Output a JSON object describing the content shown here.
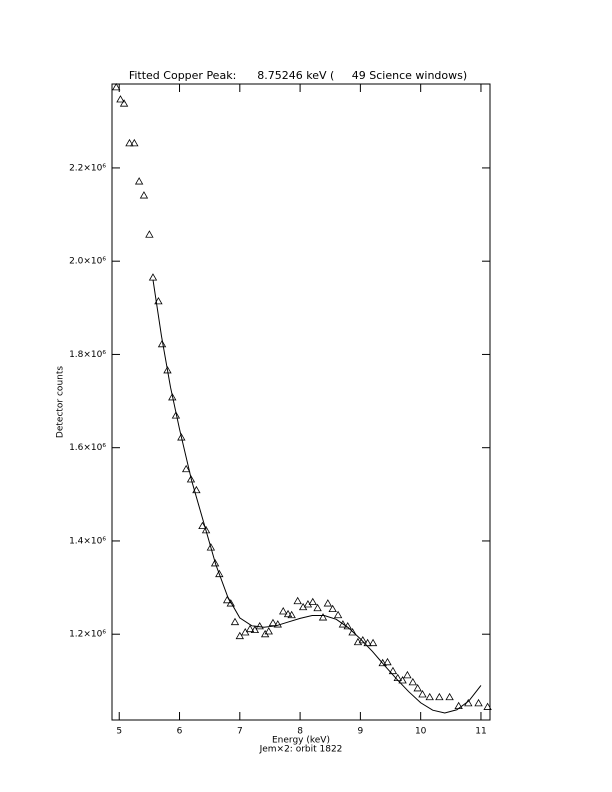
{
  "chart_data": {
    "type": "scatter",
    "title": "Fitted Copper Peak:      8.75246 keV (     49 Science windows)",
    "x_label": "Energy (keV)",
    "subtitle": "Jem×2: orbit 1822",
    "y_label": "Detector counts",
    "xlim": [
      4.88,
      11.15
    ],
    "ylim": [
      1016000,
      2380000
    ],
    "xticks": [
      5,
      6,
      7,
      8,
      9,
      10,
      11
    ],
    "yticks": [
      {
        "value": 1200000,
        "label": "1.2×10⁶"
      },
      {
        "value": 1400000,
        "label": "1.4×10⁶"
      },
      {
        "value": 1600000,
        "label": "1.6×10⁶"
      },
      {
        "value": 1800000,
        "label": "1.8×10⁶"
      },
      {
        "value": 2000000,
        "label": "2.0×10⁶"
      },
      {
        "value": 2200000,
        "label": "2.2×10⁶"
      }
    ],
    "series": [
      {
        "color": "#000000",
        "marker": "triangle",
        "x": [
          4.95,
          5.02,
          5.08,
          5.17,
          5.25,
          5.33,
          5.41,
          5.5,
          5.56,
          5.65,
          5.71,
          5.8,
          5.88,
          5.94,
          6.03,
          6.11,
          6.19,
          6.28,
          6.38,
          6.44,
          6.52,
          6.59,
          6.66,
          6.79,
          6.85,
          6.92,
          7.0,
          7.09,
          7.17,
          7.25,
          7.33,
          7.42,
          7.48,
          7.55,
          7.63,
          7.72,
          7.8,
          7.86,
          7.96,
          8.05,
          8.13,
          8.21,
          8.29,
          8.38,
          8.46,
          8.54,
          8.63,
          8.71,
          8.79,
          8.87,
          8.96,
          9.04,
          9.12,
          9.21,
          9.37,
          9.45,
          9.54,
          9.62,
          9.7,
          9.78,
          9.87,
          9.95,
          10.03,
          10.15,
          10.31,
          10.48,
          10.63,
          10.79,
          10.96,
          11.11
        ],
        "values": [
          2373000,
          2347000,
          2338000,
          2253000,
          2253000,
          2171000,
          2141000,
          2057000,
          1965000,
          1914000,
          1822000,
          1766000,
          1708000,
          1669000,
          1622000,
          1554000,
          1532000,
          1509000,
          1432000,
          1423000,
          1386000,
          1352000,
          1329000,
          1273000,
          1266000,
          1226000,
          1196000,
          1204000,
          1211000,
          1209000,
          1217000,
          1200000,
          1206000,
          1224000,
          1221000,
          1249000,
          1243000,
          1241000,
          1271000,
          1258000,
          1264000,
          1269000,
          1256000,
          1236000,
          1266000,
          1254000,
          1241000,
          1221000,
          1217000,
          1204000,
          1183000,
          1187000,
          1181000,
          1181000,
          1138000,
          1140000,
          1121000,
          1106000,
          1101000,
          1112000,
          1097000,
          1084000,
          1071000,
          1065000,
          1065000,
          1065000,
          1046000,
          1052000,
          1052000,
          1044000
        ]
      },
      {
        "color": "#000000",
        "style": "line",
        "x": [
          5.56,
          5.7,
          5.85,
          6.0,
          6.2,
          6.4,
          6.6,
          6.8,
          7.0,
          7.2,
          7.4,
          7.6,
          7.8,
          8.0,
          8.2,
          8.4,
          8.6,
          8.8,
          9.0,
          9.2,
          9.4,
          9.6,
          9.8,
          10.0,
          10.2,
          10.4,
          10.6,
          10.8,
          11.0
        ],
        "values": [
          1960000,
          1840000,
          1730000,
          1640000,
          1530000,
          1440000,
          1350000,
          1280000,
          1235000,
          1218000,
          1215000,
          1218000,
          1226000,
          1234000,
          1240000,
          1240000,
          1232000,
          1214000,
          1190000,
          1163000,
          1133000,
          1104000,
          1077000,
          1053000,
          1037000,
          1031000,
          1038000,
          1057000,
          1090000
        ]
      }
    ]
  }
}
